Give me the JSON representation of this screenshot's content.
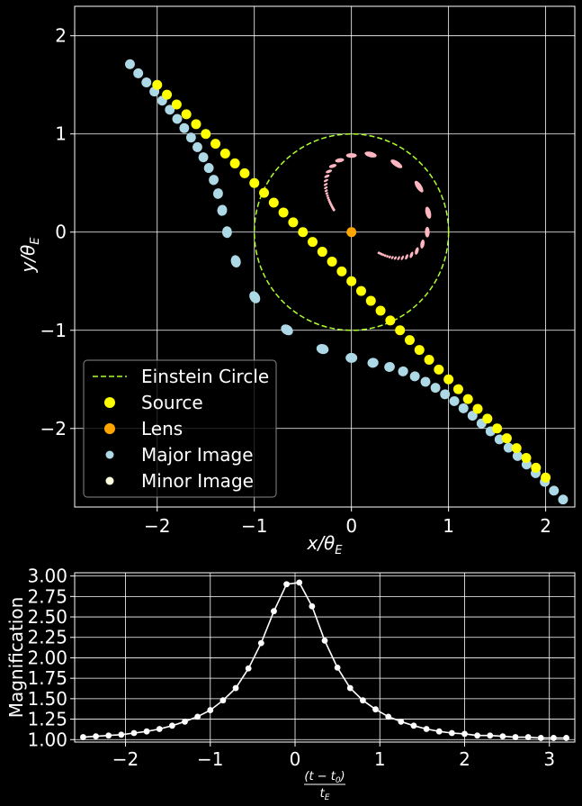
{
  "chart_data": [
    {
      "type": "scatter",
      "xlabel": "x/θ",
      "xlabel_sub": "E",
      "ylabel": "y/θ",
      "ylabel_sub": "E",
      "xlim": [
        -2.85,
        2.3
      ],
      "ylim": [
        -2.8,
        2.3
      ],
      "xticks": [
        -2,
        -1,
        0,
        1,
        2
      ],
      "yticks": [
        -2,
        -1,
        0,
        1,
        2
      ],
      "xtick_labels": [
        "−2",
        "−1",
        "0",
        "1",
        "2"
      ],
      "ytick_labels": [
        "−2",
        "−1",
        "0",
        "1",
        "2"
      ],
      "grid": true,
      "legend_position": "lower-left",
      "colors": {
        "source": "#ffff00",
        "lens": "#ffa500",
        "major": "#add8e6",
        "minor": "#ffb6c1",
        "minor_legend": "#ffffe0",
        "einstein": "#adff2f"
      },
      "einstein_circle": {
        "center": [
          0,
          0
        ],
        "radius": 1
      },
      "lens": {
        "x": 0,
        "y": 0
      },
      "source_track": {
        "x_start": -2.0,
        "x_end": 2.0,
        "y_intercept": -0.5,
        "slope": -1.0,
        "count": 41
      },
      "legend": [
        {
          "label": "Einstein Circle",
          "kind": "line"
        },
        {
          "label": "Source",
          "kind": "source"
        },
        {
          "label": "Lens",
          "kind": "lens"
        },
        {
          "label": "Major Image",
          "kind": "major"
        },
        {
          "label": "Minor Image",
          "kind": "minor"
        }
      ]
    },
    {
      "type": "line",
      "xlabel_num": "(t − t",
      "xlabel_num_sub": "0",
      "xlabel_den": "t",
      "xlabel_den_sub": "E",
      "ylabel": "Magnification",
      "xlim": [
        -2.6,
        3.3
      ],
      "ylim": [
        0.97,
        3.04
      ],
      "xticks": [
        -2,
        -1,
        0,
        1,
        2,
        3
      ],
      "xtick_labels": [
        "−2",
        "−1",
        "0",
        "1",
        "2",
        "3"
      ],
      "yticks": [
        1.0,
        1.25,
        1.5,
        1.75,
        2.0,
        2.25,
        2.5,
        2.75,
        3.0
      ],
      "ytick_labels": [
        "1.00",
        "1.25",
        "1.50",
        "1.75",
        "2.00",
        "2.25",
        "2.50",
        "2.75",
        "3.00"
      ],
      "grid": true,
      "series": [
        {
          "color": "#ffffff",
          "x": [
            -2.5,
            -2.35,
            -2.2,
            -2.05,
            -1.9,
            -1.75,
            -1.6,
            -1.45,
            -1.3,
            -1.15,
            -1.0,
            -0.85,
            -0.7,
            -0.55,
            -0.4,
            -0.25,
            -0.1,
            0.05,
            0.2,
            0.35,
            0.5,
            0.65,
            0.8,
            0.95,
            1.1,
            1.25,
            1.4,
            1.55,
            1.7,
            1.85,
            2.0,
            2.15,
            2.3,
            2.45,
            2.6,
            2.75,
            2.9,
            3.05,
            3.2
          ],
          "y": [
            1.03,
            1.04,
            1.05,
            1.06,
            1.08,
            1.1,
            1.13,
            1.17,
            1.22,
            1.28,
            1.36,
            1.48,
            1.63,
            1.87,
            2.18,
            2.57,
            2.9,
            2.92,
            2.63,
            2.21,
            1.88,
            1.63,
            1.48,
            1.37,
            1.28,
            1.22,
            1.17,
            1.13,
            1.1,
            1.08,
            1.07,
            1.05,
            1.05,
            1.04,
            1.03,
            1.03,
            1.02,
            1.02,
            1.02
          ]
        }
      ]
    }
  ]
}
